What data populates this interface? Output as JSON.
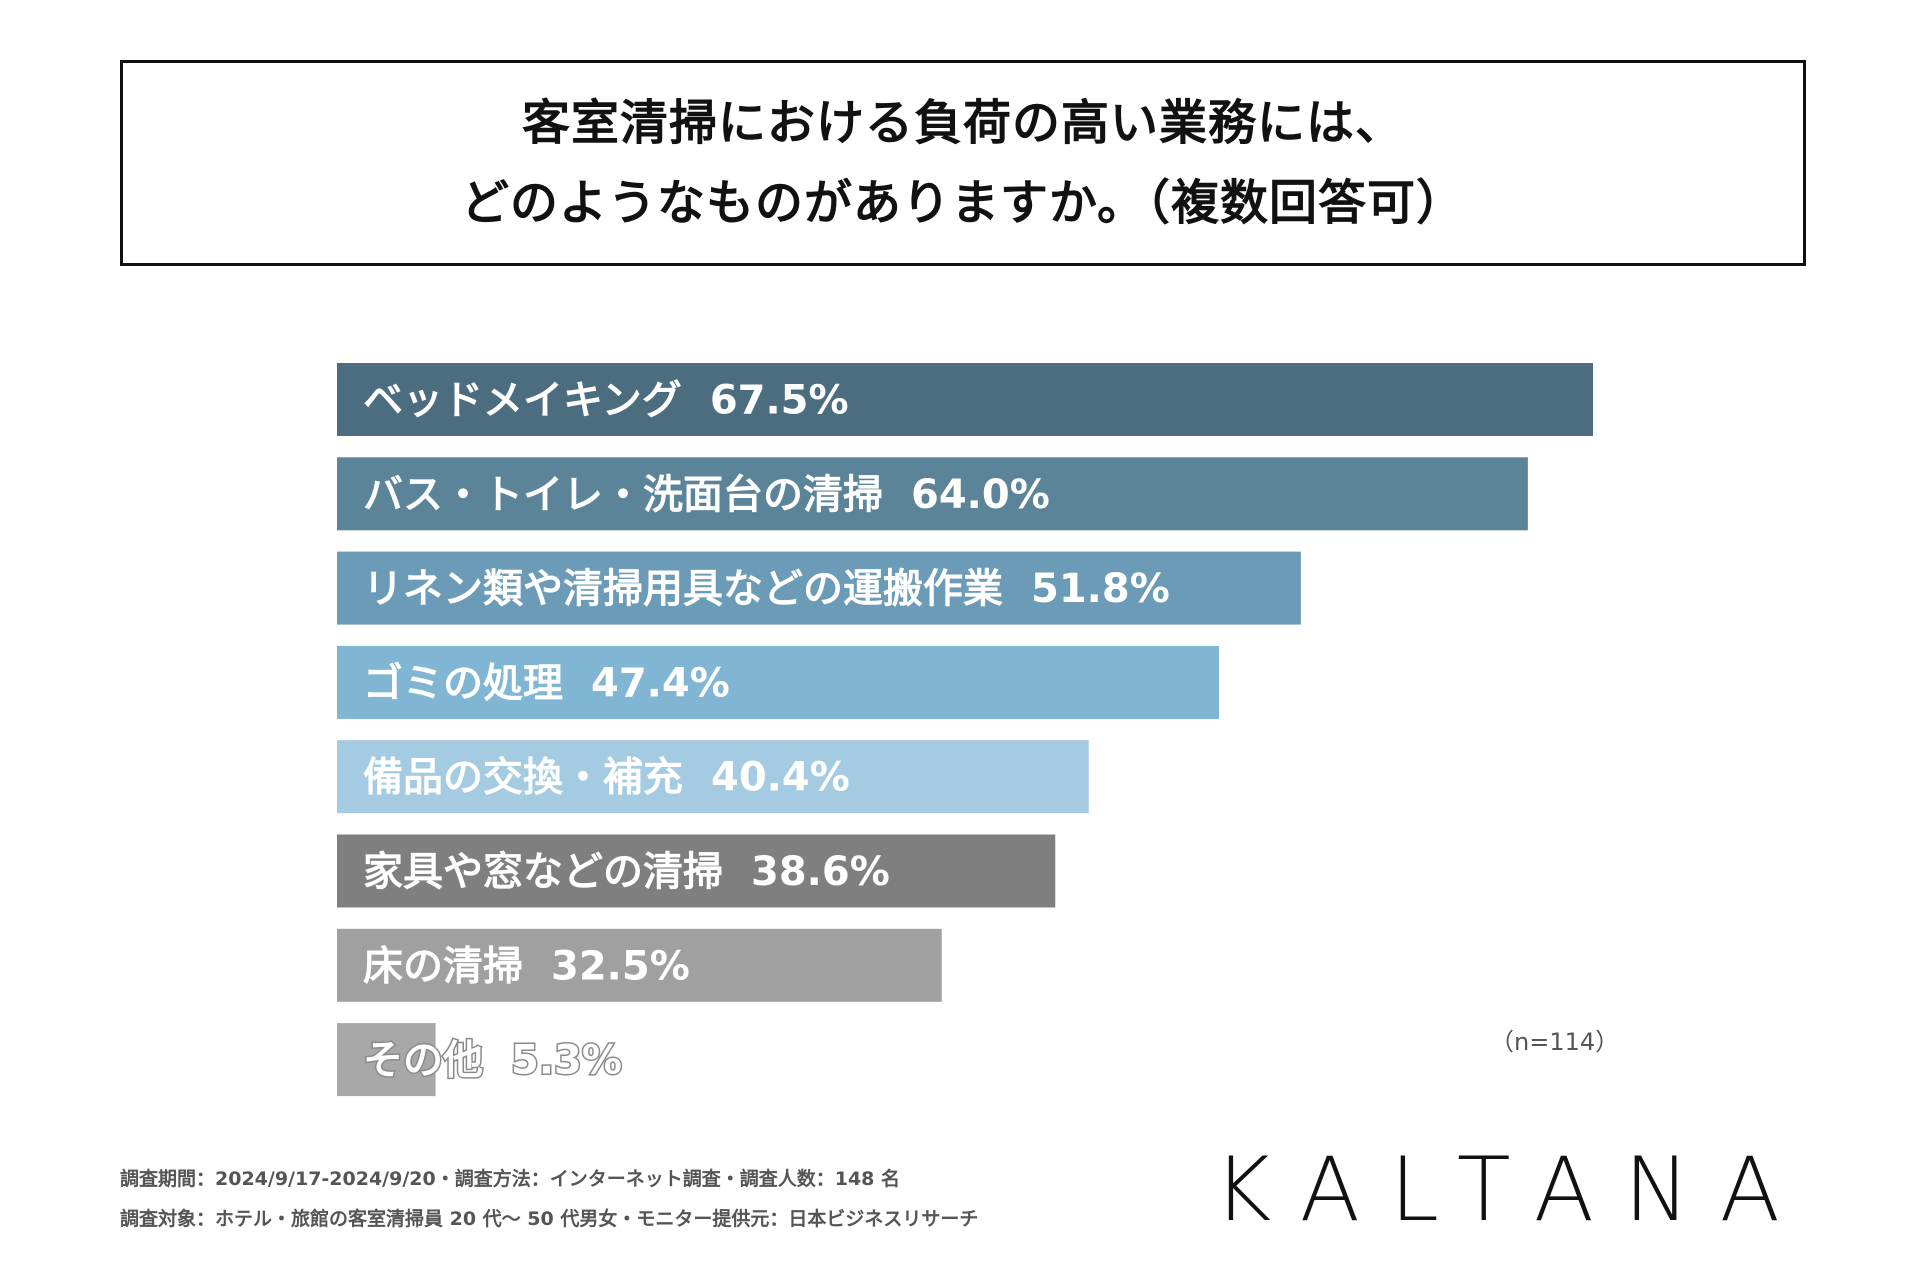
{
  "title": {
    "line1": "客室清掃における負荷の高い業務には、",
    "line2": "どのようなものがありますか。（複数回答可）"
  },
  "chart_data": {
    "type": "bar",
    "orientation": "horizontal",
    "categories": [
      "ベッドメイキング",
      "バス・トイレ・洗面台の清掃",
      "リネン類や清掃用具などの運搬作業",
      "ゴミの処理",
      "備品の交換・補充",
      "家具や窓などの清掃",
      "床の清掃",
      "その他"
    ],
    "values": [
      67.5,
      64.0,
      51.8,
      47.4,
      40.4,
      38.6,
      32.5,
      5.3
    ],
    "value_labels": [
      "67.5%",
      "64.0%",
      "51.8%",
      "47.4%",
      "40.4%",
      "38.6%",
      "32.5%",
      "5.3%"
    ],
    "colors": [
      "#4c6c80",
      "#5c8499",
      "#6b9bb6",
      "#80b5d3",
      "#a4cbe1",
      "#7f7f7f",
      "#a0a0a0",
      "#a8a8a8"
    ],
    "xlim": [
      0,
      67.5
    ],
    "grid": false,
    "legend": "none"
  },
  "sample_size": "（n=114）",
  "footnotes": {
    "line1": "調査期間：2024/9/17-2024/9/20・調査方法：インターネット調査・調査人数：148 名",
    "line2": "調査対象：ホテル・旅館の客室清掃員 20 代〜 50 代男女・モニター提供元：日本ビジネスリサーチ"
  },
  "brand": "KALTANA"
}
